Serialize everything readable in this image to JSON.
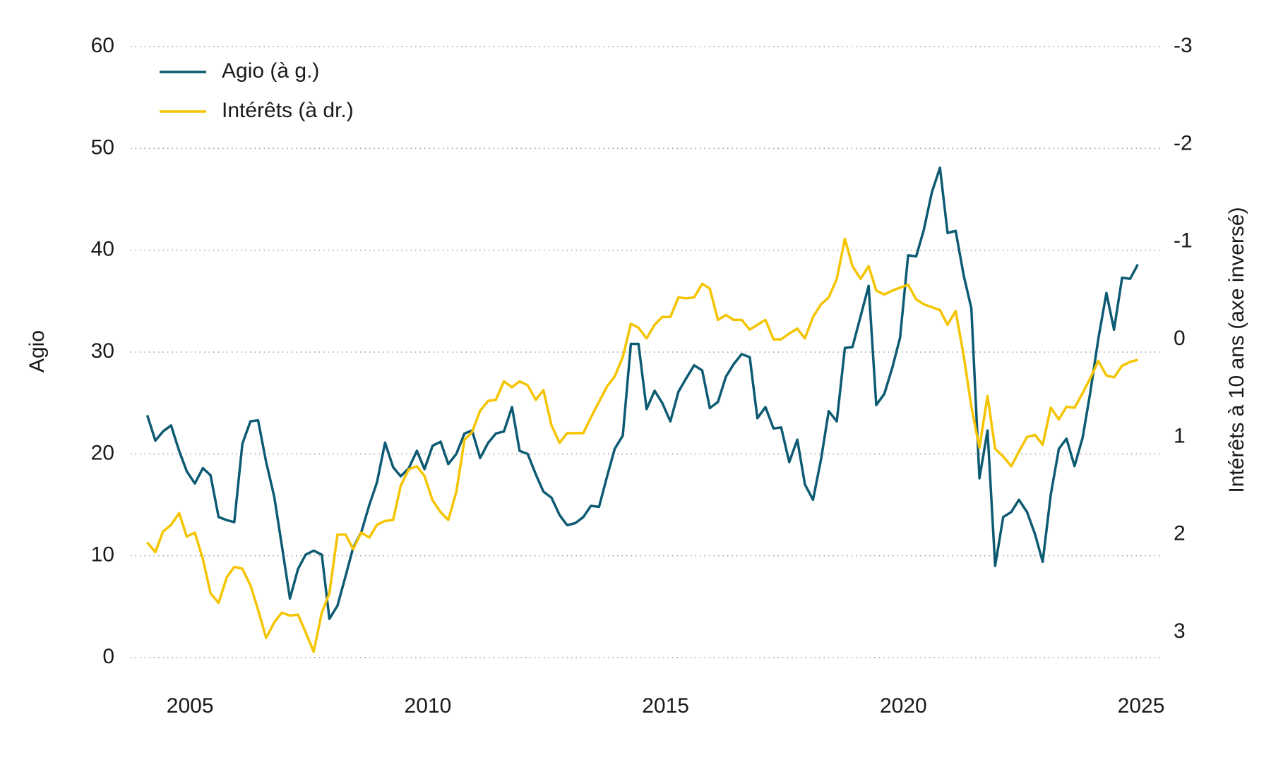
{
  "chart_data": {
    "type": "line",
    "y_label": "Agio",
    "y2_label": "Intérêts à 10 ans (axe inversé)",
    "x": [
      2004.1,
      2004.27,
      2004.43,
      2004.6,
      2004.77,
      2004.93,
      2005.1,
      2005.27,
      2005.43,
      2005.6,
      2005.77,
      2005.93,
      2006.1,
      2006.27,
      2006.43,
      2006.6,
      2006.77,
      2006.93,
      2007.1,
      2007.27,
      2007.43,
      2007.6,
      2007.77,
      2007.93,
      2008.1,
      2008.27,
      2008.43,
      2008.6,
      2008.77,
      2008.93,
      2009.1,
      2009.27,
      2009.43,
      2009.6,
      2009.77,
      2009.93,
      2010.1,
      2010.27,
      2010.43,
      2010.6,
      2010.77,
      2010.93,
      2011.1,
      2011.27,
      2011.43,
      2011.6,
      2011.77,
      2011.93,
      2012.1,
      2012.27,
      2012.43,
      2012.6,
      2012.77,
      2012.93,
      2013.1,
      2013.27,
      2013.43,
      2013.6,
      2013.77,
      2013.93,
      2014.1,
      2014.27,
      2014.43,
      2014.6,
      2014.77,
      2014.93,
      2015.1,
      2015.27,
      2015.43,
      2015.6,
      2015.77,
      2015.93,
      2016.1,
      2016.27,
      2016.43,
      2016.6,
      2016.77,
      2016.93,
      2017.1,
      2017.27,
      2017.43,
      2017.6,
      2017.77,
      2017.93,
      2018.1,
      2018.27,
      2018.43,
      2018.6,
      2018.77,
      2018.93,
      2019.1,
      2019.27,
      2019.43,
      2019.6,
      2019.77,
      2019.93,
      2020.1,
      2020.27,
      2020.43,
      2020.6,
      2020.77,
      2020.93,
      2021.1,
      2021.27,
      2021.43,
      2021.6,
      2021.77,
      2021.93,
      2022.1,
      2022.27,
      2022.43,
      2022.6,
      2022.77,
      2022.93,
      2023.1,
      2023.27,
      2023.43,
      2023.6,
      2023.77,
      2023.93,
      2024.1,
      2024.27,
      2024.43,
      2024.6,
      2024.77,
      2024.93
    ],
    "series": [
      {
        "name": "Agio (à g.)",
        "color": "#0d5a73",
        "values": [
          23.8,
          21.3,
          22.2,
          22.8,
          20.3,
          18.3,
          17.1,
          18.6,
          17.9,
          13.8,
          13.5,
          13.3,
          21,
          23.2,
          23.3,
          19.2,
          15.8,
          11,
          5.8,
          8.7,
          10.1,
          10.5,
          10.1,
          3.8,
          5.1,
          8,
          10.8,
          12.3,
          15,
          17.2,
          21.1,
          18.7,
          17.8,
          18.6,
          20.3,
          18.5,
          20.8,
          21.2,
          19,
          20,
          22,
          22.3,
          19.6,
          21.1,
          22,
          22.2,
          24.6,
          20.3,
          20,
          18,
          16.3,
          15.7,
          14,
          13,
          13.2,
          13.8,
          14.9,
          14.8,
          17.8,
          20.5,
          21.8,
          30.8,
          30.8,
          24.4,
          26.2,
          25,
          23.2,
          26.1,
          27.4,
          28.7,
          28.2,
          24.5,
          25.1,
          27.6,
          28.8,
          29.8,
          29.5,
          23.5,
          24.6,
          22.5,
          22.6,
          19.2,
          21.4,
          17,
          15.5,
          19.5,
          24.2,
          23.2,
          30.4,
          30.5,
          33.5,
          36.5,
          24.8,
          25.9,
          28.5,
          31.4,
          39.5,
          39.4,
          42,
          45.7,
          48.1,
          41.7,
          41.9,
          37.5,
          34.3,
          17.6,
          22.3,
          9,
          13.8,
          14.3,
          15.5,
          14.3,
          12.1,
          9.4,
          16,
          20.5,
          21.5,
          18.8,
          21.6,
          26,
          31.3,
          35.8,
          32.2,
          37.3,
          37.2,
          38.6
        ]
      },
      {
        "name": "Intérêts (à dr.)",
        "color": "#f5c400",
        "axis": "y2",
        "values": [
          2.08,
          2.18,
          1.97,
          1.9,
          1.78,
          2.02,
          1.98,
          2.25,
          2.6,
          2.7,
          2.44,
          2.33,
          2.35,
          2.52,
          2.77,
          3.06,
          2.9,
          2.8,
          2.83,
          2.82,
          3.0,
          3.2,
          2.8,
          2.6,
          2.0,
          2.0,
          2.15,
          1.98,
          2.03,
          1.9,
          1.86,
          1.85,
          1.5,
          1.33,
          1.3,
          1.4,
          1.65,
          1.77,
          1.85,
          1.56,
          1.03,
          0.95,
          0.73,
          0.63,
          0.62,
          0.43,
          0.49,
          0.43,
          0.47,
          0.62,
          0.52,
          0.88,
          1.06,
          0.96,
          0.96,
          0.96,
          0.8,
          0.64,
          0.48,
          0.38,
          0.18,
          -0.16,
          -0.12,
          -0.01,
          -0.15,
          -0.23,
          -0.23,
          -0.43,
          -0.42,
          -0.43,
          -0.57,
          -0.52,
          -0.2,
          -0.25,
          -0.2,
          -0.2,
          -0.1,
          -0.15,
          -0.2,
          0.0,
          0.0,
          -0.06,
          -0.11,
          -0.01,
          -0.23,
          -0.36,
          -0.43,
          -0.62,
          -1.03,
          -0.75,
          -0.62,
          -0.75,
          -0.5,
          -0.46,
          -0.5,
          -0.53,
          -0.56,
          -0.41,
          -0.36,
          -0.33,
          -0.3,
          -0.15,
          -0.29,
          0.17,
          0.69,
          1.11,
          0.58,
          1.12,
          1.2,
          1.3,
          1.15,
          1.0,
          0.98,
          1.08,
          0.7,
          0.82,
          0.69,
          0.7,
          0.55,
          0.4,
          0.22,
          0.37,
          0.39,
          0.27,
          0.23,
          0.21
        ]
      }
    ],
    "xlim": [
      2003.75,
      2025.4
    ],
    "xticks": [
      2005,
      2010,
      2015,
      2020,
      2025
    ],
    "ylim": [
      0,
      60
    ],
    "yticks": [
      0,
      10,
      20,
      30,
      40,
      50,
      60
    ],
    "y2lim": [
      3.26,
      -3
    ],
    "y2ticks": [
      -3,
      -2,
      -1,
      0,
      1,
      2,
      3
    ],
    "y2_inverted": true,
    "grid": true,
    "legend": "top-left"
  }
}
